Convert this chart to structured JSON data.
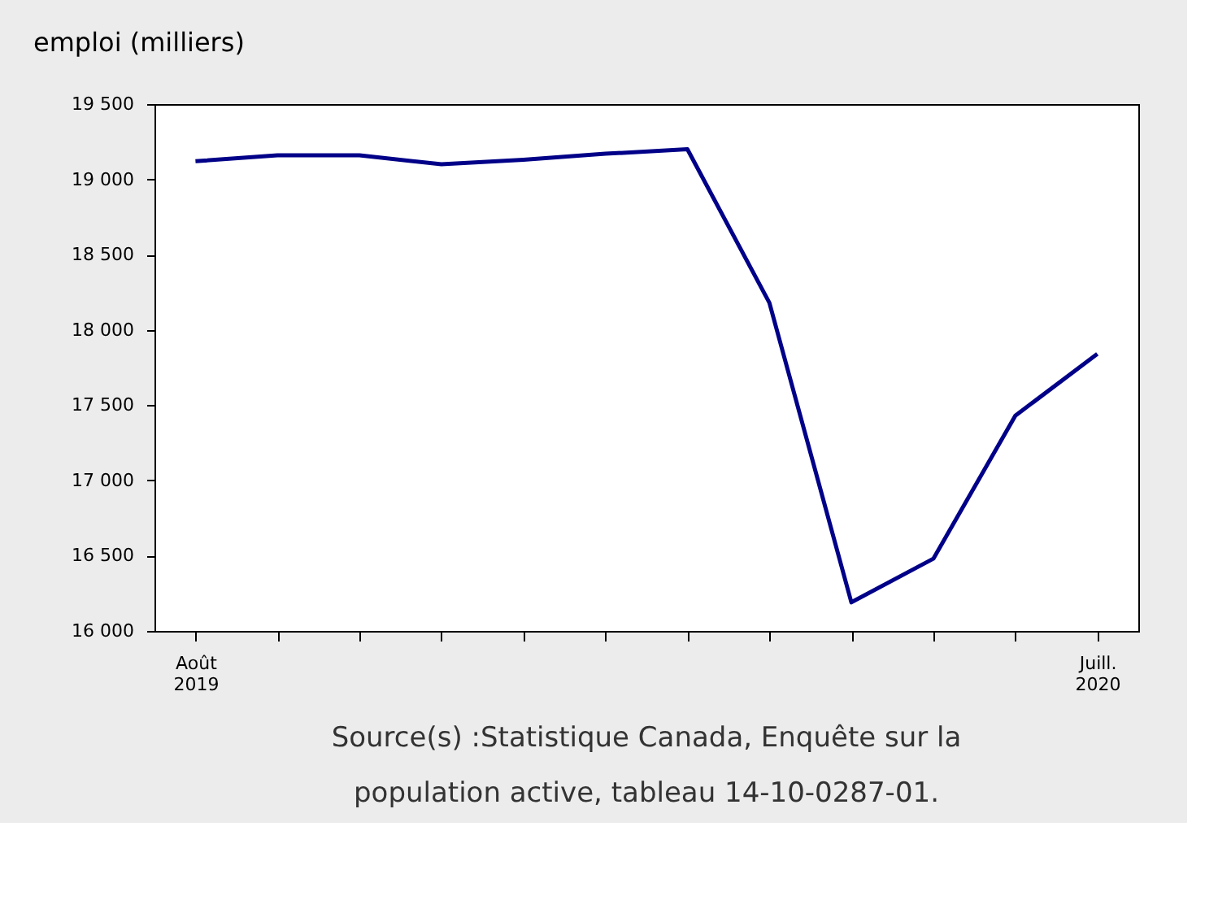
{
  "chart_data": {
    "type": "line",
    "ylabel": "emploi (milliers)",
    "categories": [
      "Août 2019",
      null,
      null,
      null,
      null,
      null,
      null,
      null,
      null,
      null,
      null,
      "Juill. 2020"
    ],
    "series": [
      {
        "color": "#000088",
        "values": [
          19120,
          19160,
          19160,
          19100,
          19130,
          19170,
          19200,
          18180,
          16190,
          16480,
          17430,
          17840
        ]
      }
    ],
    "ylim": [
      16000,
      19500
    ],
    "yticks": [
      {
        "value": 16000,
        "label": "16 000"
      },
      {
        "value": 16500,
        "label": "16 500"
      },
      {
        "value": 17000,
        "label": "17 000"
      },
      {
        "value": 17500,
        "label": "17 500"
      },
      {
        "value": 18000,
        "label": "18 000"
      },
      {
        "value": 18500,
        "label": "18 500"
      },
      {
        "value": 19000,
        "label": "19 000"
      },
      {
        "value": 19500,
        "label": "19 500"
      }
    ],
    "grid": false,
    "marker": "none",
    "line_style": "solid",
    "annotations": [
      "Source(s) :Statistique Canada, Enquête sur la population active, tableau 14-10-0287-01."
    ]
  }
}
